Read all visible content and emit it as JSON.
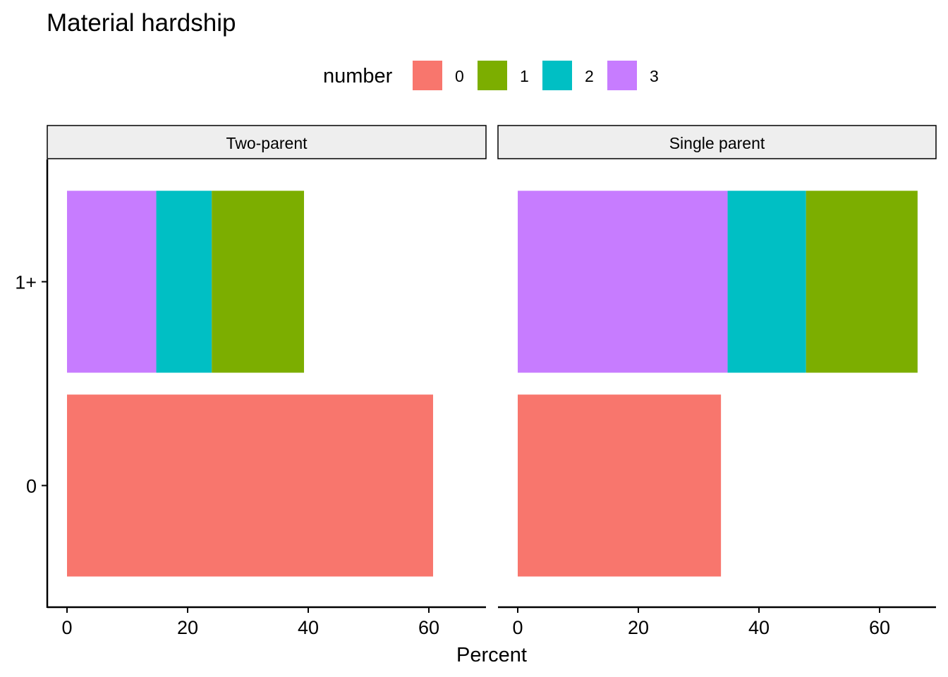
{
  "chart_data": {
    "type": "bar",
    "orientation": "horizontal",
    "stacked": true,
    "title": "Material hardship",
    "xlabel": "Percent",
    "ylabel": "",
    "xlim": [
      0,
      70
    ],
    "xticks": [
      0,
      20,
      40,
      60
    ],
    "categories": [
      "1+",
      "0"
    ],
    "legend": {
      "title": "number",
      "position": "top",
      "entries": [
        {
          "label": "0",
          "color": "#F8766D"
        },
        {
          "label": "1",
          "color": "#7CAE00"
        },
        {
          "label": "2",
          "color": "#00BFC4"
        },
        {
          "label": "3",
          "color": "#C77CFF"
        }
      ]
    },
    "panels": [
      {
        "name": "Two-parent",
        "bars": [
          {
            "category": "1+",
            "segments": [
              {
                "number": "3",
                "value": 14.8
              },
              {
                "number": "2",
                "value": 9.2
              },
              {
                "number": "1",
                "value": 15.3
              }
            ]
          },
          {
            "category": "0",
            "segments": [
              {
                "number": "0",
                "value": 60.7
              }
            ]
          }
        ]
      },
      {
        "name": "Single parent",
        "bars": [
          {
            "category": "1+",
            "segments": [
              {
                "number": "3",
                "value": 34.8
              },
              {
                "number": "2",
                "value": 13.0
              },
              {
                "number": "1",
                "value": 18.5
              }
            ]
          },
          {
            "category": "0",
            "segments": [
              {
                "number": "0",
                "value": 33.7
              }
            ]
          }
        ]
      }
    ],
    "grid": false
  }
}
